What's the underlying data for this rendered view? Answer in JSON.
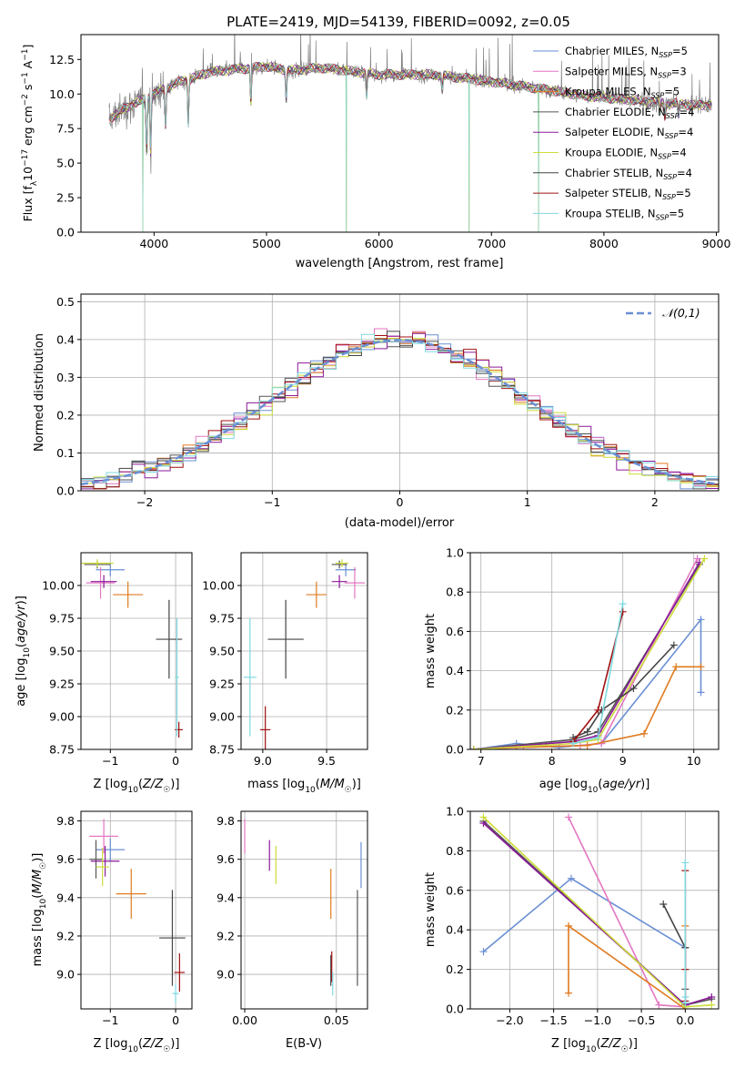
{
  "title": "PLATE=2419, MJD=54139, FIBERID=0092, z=0.05",
  "palette": {
    "Chabrier MILES": "#6a8fd4",
    "Salpeter MILES": "#e377c2",
    "Kroupa MILES": "#e07b20",
    "Chabrier ELODIE": "#555555",
    "Salpeter ELODIE": "#8b1a9a",
    "Kroupa ELODIE": "#cddc39",
    "Chabrier STELIB": "#444444",
    "Salpeter STELIB": "#a01010",
    "Kroupa STELIB": "#7fd9e0",
    "data": "#808080",
    "gaussian": "#6a8fd4",
    "grid": "#b0b0b0"
  },
  "chart_data": [
    {
      "id": "spectrum",
      "type": "line",
      "title": "PLATE=2419, MJD=54139, FIBERID=0092, z=0.05",
      "xlabel": "wavelength [Angstrom, rest frame]",
      "ylabel": "Flux [f_λ 10^-17 erg cm^-2 s^-1 A^-1]",
      "xlim": [
        3350,
        9020
      ],
      "ylim": [
        0,
        14.3
      ],
      "xticks": [
        "4000",
        "5000",
        "6000",
        "7000",
        "8000",
        "9000"
      ],
      "yticks": [
        "0.0",
        "2.5",
        "5.0",
        "7.5",
        "10.0",
        "12.5"
      ],
      "grid": false,
      "legend_position": "top-right",
      "legend": [
        {
          "name": "Chabrier MILES",
          "nssp": "5"
        },
        {
          "name": "Salpeter MILES",
          "nssp": "3"
        },
        {
          "name": "Kroupa MILES",
          "nssp": "5"
        },
        {
          "name": "Chabrier ELODIE",
          "nssp": "4"
        },
        {
          "name": "Salpeter ELODIE",
          "nssp": "4"
        },
        {
          "name": "Kroupa ELODIE",
          "nssp": "4"
        },
        {
          "name": "Chabrier STELIB",
          "nssp": "4"
        },
        {
          "name": "Salpeter STELIB",
          "nssp": "5"
        },
        {
          "name": "Kroupa STELIB",
          "nssp": "5"
        }
      ],
      "continuum": [
        [
          3600,
          8.2
        ],
        [
          3750,
          9.0
        ],
        [
          3900,
          9.6
        ],
        [
          4000,
          10.0
        ],
        [
          4200,
          10.8
        ],
        [
          4500,
          11.6
        ],
        [
          5000,
          12.0
        ],
        [
          5200,
          11.7
        ],
        [
          5500,
          11.9
        ],
        [
          6000,
          11.4
        ],
        [
          6500,
          11.4
        ],
        [
          6800,
          11.1
        ],
        [
          7000,
          10.9
        ],
        [
          7500,
          10.3
        ],
        [
          7800,
          9.9
        ],
        [
          8200,
          9.6
        ],
        [
          8500,
          9.4
        ],
        [
          8800,
          9.2
        ],
        [
          8960,
          9.2
        ]
      ],
      "absorption_features": [
        [
          3934,
          5.6
        ],
        [
          3969,
          5.4
        ],
        [
          4102,
          7.5
        ],
        [
          4304,
          7.6
        ],
        [
          4861,
          9.2
        ],
        [
          5175,
          9.5
        ],
        [
          5890,
          9.7
        ],
        [
          6563,
          10.2
        ],
        [
          8498,
          8.6
        ],
        [
          8542,
          8.3
        ],
        [
          8662,
          8.4
        ]
      ],
      "model_drops": [
        [
          3900,
          0.0
        ],
        [
          5710,
          0.0
        ],
        [
          6800,
          0.0
        ],
        [
          7420,
          0.0
        ]
      ]
    },
    {
      "id": "residuals",
      "type": "line",
      "xlabel": "(data-model)/error",
      "ylabel": "Normed distribution",
      "xlim": [
        -2.5,
        2.5
      ],
      "ylim": [
        0,
        0.52
      ],
      "xticks": [
        "−2",
        "−1",
        "0",
        "1",
        "2"
      ],
      "yticks": [
        "0.0",
        "0.1",
        "0.2",
        "0.3",
        "0.4",
        "0.5"
      ],
      "grid": true,
      "legend_position": "top-right",
      "legend": [
        {
          "name": "𝒩(0,1)"
        }
      ],
      "bin_width": 0.1
    },
    {
      "id": "z-age",
      "type": "scatter",
      "xlabel": "Z [log10(Z/Z☉)]",
      "ylabel": "age [log10(age/yr)]",
      "xlim": [
        -1.45,
        0.25
      ],
      "ylim": [
        8.75,
        10.25
      ],
      "xticks": [
        "−1",
        "0"
      ],
      "yticks": [
        "8.75",
        "9.00",
        "9.25",
        "9.50",
        "9.75",
        "10.00"
      ],
      "grid": true,
      "points": [
        {
          "m": "Chabrier MILES",
          "x": -1.0,
          "xe": 0.22,
          "y": 10.12,
          "ye": 0.05
        },
        {
          "m": "Salpeter MILES",
          "x": -1.15,
          "xe": 0.22,
          "y": 10.02,
          "ye": 0.12
        },
        {
          "m": "Kroupa MILES",
          "x": -0.73,
          "xe": 0.23,
          "y": 9.93,
          "ye": 0.1
        },
        {
          "m": "Chabrier ELODIE",
          "x": -1.2,
          "xe": 0.2,
          "y": 10.16,
          "ye": 0.03
        },
        {
          "m": "Salpeter ELODIE",
          "x": -1.1,
          "xe": 0.2,
          "y": 10.03,
          "ye": 0.05
        },
        {
          "m": "Kroupa ELODIE",
          "x": -1.2,
          "xe": 0.25,
          "y": 10.17,
          "ye": 0.03
        },
        {
          "m": "Chabrier STELIB",
          "x": -0.1,
          "xe": 0.2,
          "y": 9.59,
          "ye": 0.3
        },
        {
          "m": "Salpeter STELIB",
          "x": 0.05,
          "xe": 0.06,
          "y": 8.9,
          "ye": 0.06
        },
        {
          "m": "Kroupa STELIB",
          "x": 0.02,
          "xe": 0.03,
          "y": 9.3,
          "ye": 0.45
        }
      ]
    },
    {
      "id": "mass-age",
      "type": "scatter",
      "xlabel": "mass [log10(M/M☉)]",
      "ylabel": "",
      "xlim": [
        8.83,
        9.82
      ],
      "ylim": [
        8.75,
        10.25
      ],
      "xticks": [
        "9.0",
        "9.5"
      ],
      "yticks": [
        "8.75",
        "9.00",
        "9.25",
        "9.50",
        "9.75",
        "10.00"
      ],
      "grid": true,
      "points": [
        {
          "m": "Chabrier MILES",
          "x": 9.65,
          "xe": 0.08,
          "y": 10.12,
          "ye": 0.05
        },
        {
          "m": "Salpeter MILES",
          "x": 9.72,
          "xe": 0.08,
          "y": 10.02,
          "ye": 0.12
        },
        {
          "m": "Kroupa MILES",
          "x": 9.42,
          "xe": 0.08,
          "y": 9.93,
          "ye": 0.1
        },
        {
          "m": "Chabrier ELODIE",
          "x": 9.6,
          "xe": 0.06,
          "y": 10.16,
          "ye": 0.03
        },
        {
          "m": "Salpeter ELODIE",
          "x": 9.6,
          "xe": 0.06,
          "y": 10.03,
          "ye": 0.05
        },
        {
          "m": "Kroupa ELODIE",
          "x": 9.62,
          "xe": 0.05,
          "y": 10.17,
          "ye": 0.03
        },
        {
          "m": "Chabrier STELIB",
          "x": 9.18,
          "xe": 0.14,
          "y": 9.59,
          "ye": 0.3
        },
        {
          "m": "Salpeter STELIB",
          "x": 9.02,
          "xe": 0.04,
          "y": 8.9,
          "ye": 0.18
        },
        {
          "m": "Kroupa STELIB",
          "x": 8.9,
          "xe": 0.05,
          "y": 9.3,
          "ye": 0.45
        }
      ]
    },
    {
      "id": "age-weight",
      "type": "line",
      "xlabel": "age [log10(age/yr)]",
      "ylabel": "mass weight",
      "xlim": [
        6.85,
        10.35
      ],
      "ylim": [
        0,
        1
      ],
      "xticks": [
        "7",
        "8",
        "9",
        "10"
      ],
      "yticks": [
        "0.0",
        "0.2",
        "0.4",
        "0.6",
        "0.8",
        "1.0"
      ],
      "grid": true,
      "series": [
        {
          "m": "Chabrier MILES",
          "x": [
            6.9,
            7.5,
            8.1,
            8.7,
            10.1,
            10.1
          ],
          "y": [
            0.0,
            0.03,
            0.01,
            0.03,
            0.66,
            0.29
          ]
        },
        {
          "m": "Salpeter MILES",
          "x": [
            6.9,
            7.6,
            8.4,
            8.7,
            10.05
          ],
          "y": [
            0.0,
            0.01,
            0.02,
            0.03,
            0.97
          ]
        },
        {
          "m": "Kroupa MILES",
          "x": [
            6.9,
            7.5,
            8.5,
            9.3,
            9.75,
            10.1
          ],
          "y": [
            0.0,
            0.01,
            0.02,
            0.08,
            0.42,
            0.42
          ]
        },
        {
          "m": "Chabrier ELODIE",
          "x": [
            6.9,
            8.3,
            8.65,
            10.08
          ],
          "y": [
            0.0,
            0.05,
            0.09,
            0.94
          ]
        },
        {
          "m": "Salpeter ELODIE",
          "x": [
            6.9,
            8.3,
            8.65,
            10.08
          ],
          "y": [
            0.0,
            0.04,
            0.07,
            0.95
          ]
        },
        {
          "m": "Kroupa ELODIE",
          "x": [
            6.9,
            8.3,
            8.65,
            10.15
          ],
          "y": [
            0.0,
            0.03,
            0.05,
            0.97
          ]
        },
        {
          "m": "Chabrier STELIB",
          "x": [
            8.3,
            8.5,
            8.7,
            9.15,
            9.72
          ],
          "y": [
            0.06,
            0.09,
            0.2,
            0.31,
            0.53
          ]
        },
        {
          "m": "Salpeter STELIB",
          "x": [
            8.3,
            8.65,
            9.0
          ],
          "y": [
            0.04,
            0.2,
            0.7
          ]
        },
        {
          "m": "Kroupa STELIB",
          "x": [
            8.3,
            8.65,
            9.0
          ],
          "y": [
            0.03,
            0.06,
            0.74
          ]
        }
      ]
    },
    {
      "id": "z-mass",
      "type": "scatter",
      "xlabel": "Z [log10(Z/Z☉)]",
      "ylabel": "mass [log10(M/M☉)]",
      "xlim": [
        -1.45,
        0.25
      ],
      "ylim": [
        8.82,
        9.85
      ],
      "xticks": [
        "−1",
        "0"
      ],
      "yticks": [
        "9.0",
        "9.2",
        "9.4",
        "9.6",
        "9.8"
      ],
      "grid": true,
      "points": [
        {
          "m": "Chabrier MILES",
          "x": -1.0,
          "xe": 0.22,
          "y": 9.65,
          "ye": 0.06
        },
        {
          "m": "Salpeter MILES",
          "x": -1.1,
          "xe": 0.22,
          "y": 9.72,
          "ye": 0.09
        },
        {
          "m": "Kroupa MILES",
          "x": -0.68,
          "xe": 0.23,
          "y": 9.42,
          "ye": 0.13
        },
        {
          "m": "Chabrier ELODIE",
          "x": -1.22,
          "xe": 0.1,
          "y": 9.6,
          "ye": 0.1
        },
        {
          "m": "Salpeter ELODIE",
          "x": -1.08,
          "xe": 0.22,
          "y": 9.59,
          "ye": 0.08
        },
        {
          "m": "Kroupa ELODIE",
          "x": -1.12,
          "xe": 0.1,
          "y": 9.56,
          "ye": 0.1
        },
        {
          "m": "Chabrier STELIB",
          "x": -0.05,
          "xe": 0.2,
          "y": 9.19,
          "ye": 0.25
        },
        {
          "m": "Salpeter STELIB",
          "x": 0.06,
          "xe": 0.08,
          "y": 9.01,
          "ye": 0.1
        },
        {
          "m": "Kroupa STELIB",
          "x": 0.0,
          "xe": 0.05,
          "y": 8.9,
          "ye": 0.05
        }
      ]
    },
    {
      "id": "ebv-mass",
      "type": "scatter",
      "xlabel": "E(B-V)",
      "ylabel": "",
      "xlim": [
        -0.002,
        0.067
      ],
      "ylim": [
        8.82,
        9.85
      ],
      "xticks": [
        "0.00",
        "0.05"
      ],
      "yticks": [
        "9.0",
        "9.2",
        "9.4",
        "9.6",
        "9.8"
      ],
      "grid": true,
      "points": [
        {
          "m": "Chabrier MILES",
          "x": 0.0635,
          "xe": 0,
          "y": 9.57,
          "ye": 0.12
        },
        {
          "m": "Salpeter MILES",
          "x": 0.0,
          "xe": 0,
          "y": 9.72,
          "ye": 0.09
        },
        {
          "m": "Kroupa MILES",
          "x": 0.047,
          "xe": 0,
          "y": 9.42,
          "ye": 0.13
        },
        {
          "m": "Chabrier ELODIE",
          "x": 0.0615,
          "xe": 0,
          "y": 9.19,
          "ye": 0.25
        },
        {
          "m": "Salpeter ELODIE",
          "x": 0.0135,
          "xe": 0,
          "y": 9.62,
          "ye": 0.08
        },
        {
          "m": "Kroupa ELODIE",
          "x": 0.017,
          "xe": 0,
          "y": 9.57,
          "ye": 0.1
        },
        {
          "m": "Chabrier STELIB",
          "x": 0.047,
          "xe": 0,
          "y": 9.02,
          "ye": 0.08
        },
        {
          "m": "Salpeter STELIB",
          "x": 0.0475,
          "xe": 0,
          "y": 9.04,
          "ye": 0.08
        },
        {
          "m": "Kroupa STELIB",
          "x": 0.048,
          "xe": 0,
          "y": 8.95,
          "ye": 0.06
        }
      ]
    },
    {
      "id": "z-weight",
      "type": "line",
      "xlabel": "Z [log10(Z/Z☉)]",
      "ylabel": "mass weight",
      "xlim": [
        -2.45,
        0.38
      ],
      "ylim": [
        0,
        1
      ],
      "xticks": [
        "−2.0",
        "−1.5",
        "−1.0",
        "−0.5",
        "0.0"
      ],
      "yticks": [
        "0.0",
        "0.2",
        "0.4",
        "0.6",
        "0.8",
        "1.0"
      ],
      "grid": true,
      "series": [
        {
          "m": "Chabrier MILES",
          "x": [
            -2.3,
            -1.3,
            0.0,
            0.0
          ],
          "y": [
            0.29,
            0.66,
            0.31,
            0.03
          ]
        },
        {
          "m": "Salpeter MILES",
          "x": [
            -1.33,
            -0.3,
            0.0
          ],
          "y": [
            0.97,
            0.02,
            0.01
          ]
        },
        {
          "m": "Kroupa MILES",
          "x": [
            -1.33,
            -1.33,
            0.0,
            0.0
          ],
          "y": [
            0.08,
            0.42,
            0.0,
            0.42
          ]
        },
        {
          "m": "Chabrier ELODIE",
          "x": [
            -2.3,
            0.0,
            0.3
          ],
          "y": [
            0.95,
            0.02,
            0.05
          ]
        },
        {
          "m": "Salpeter ELODIE",
          "x": [
            -2.3,
            0.0,
            0.3
          ],
          "y": [
            0.94,
            0.02,
            0.06
          ]
        },
        {
          "m": "Kroupa ELODIE",
          "x": [
            -2.3,
            0.0,
            0.3
          ],
          "y": [
            0.97,
            0.01,
            0.02
          ]
        },
        {
          "m": "Chabrier STELIB",
          "x": [
            -0.25,
            0.0,
            0.0
          ],
          "y": [
            0.53,
            0.31,
            0.1
          ]
        },
        {
          "m": "Salpeter STELIB",
          "x": [
            0.0,
            0.0,
            0.0
          ],
          "y": [
            0.7,
            0.2,
            0.04
          ]
        },
        {
          "m": "Kroupa STELIB",
          "x": [
            0.0,
            0.0,
            0.0
          ],
          "y": [
            0.74,
            0.03,
            0.06
          ]
        }
      ]
    }
  ]
}
